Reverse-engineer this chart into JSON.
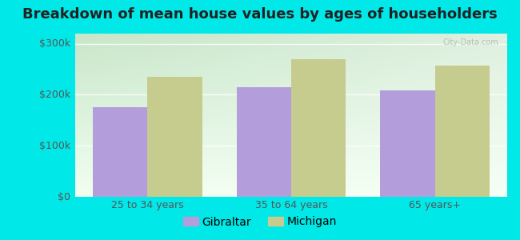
{
  "title": "Breakdown of mean house values by ages of householders",
  "categories": [
    "25 to 34 years",
    "35 to 64 years",
    "65 years+"
  ],
  "series": {
    "Gibraltar": [
      175000,
      215000,
      208000
    ],
    "Michigan": [
      235000,
      270000,
      258000
    ]
  },
  "bar_colors": {
    "Gibraltar": "#b39ddb",
    "Michigan": "#c5cc8e"
  },
  "legend_marker_colors": {
    "Gibraltar": "#ce93d8",
    "Michigan": "#d4e157"
  },
  "ylim": [
    0,
    320000
  ],
  "yticks": [
    0,
    100000,
    200000,
    300000
  ],
  "ytick_labels": [
    "$0",
    "$100k",
    "$200k",
    "$300k"
  ],
  "outer_bg": "#00e8e8",
  "plot_bg_top": "#c8e6c9",
  "plot_bg_bottom": "#f1fff1",
  "title_fontsize": 13,
  "tick_fontsize": 9,
  "legend_fontsize": 10,
  "bar_width": 0.38,
  "watermark": "City-Data.com"
}
